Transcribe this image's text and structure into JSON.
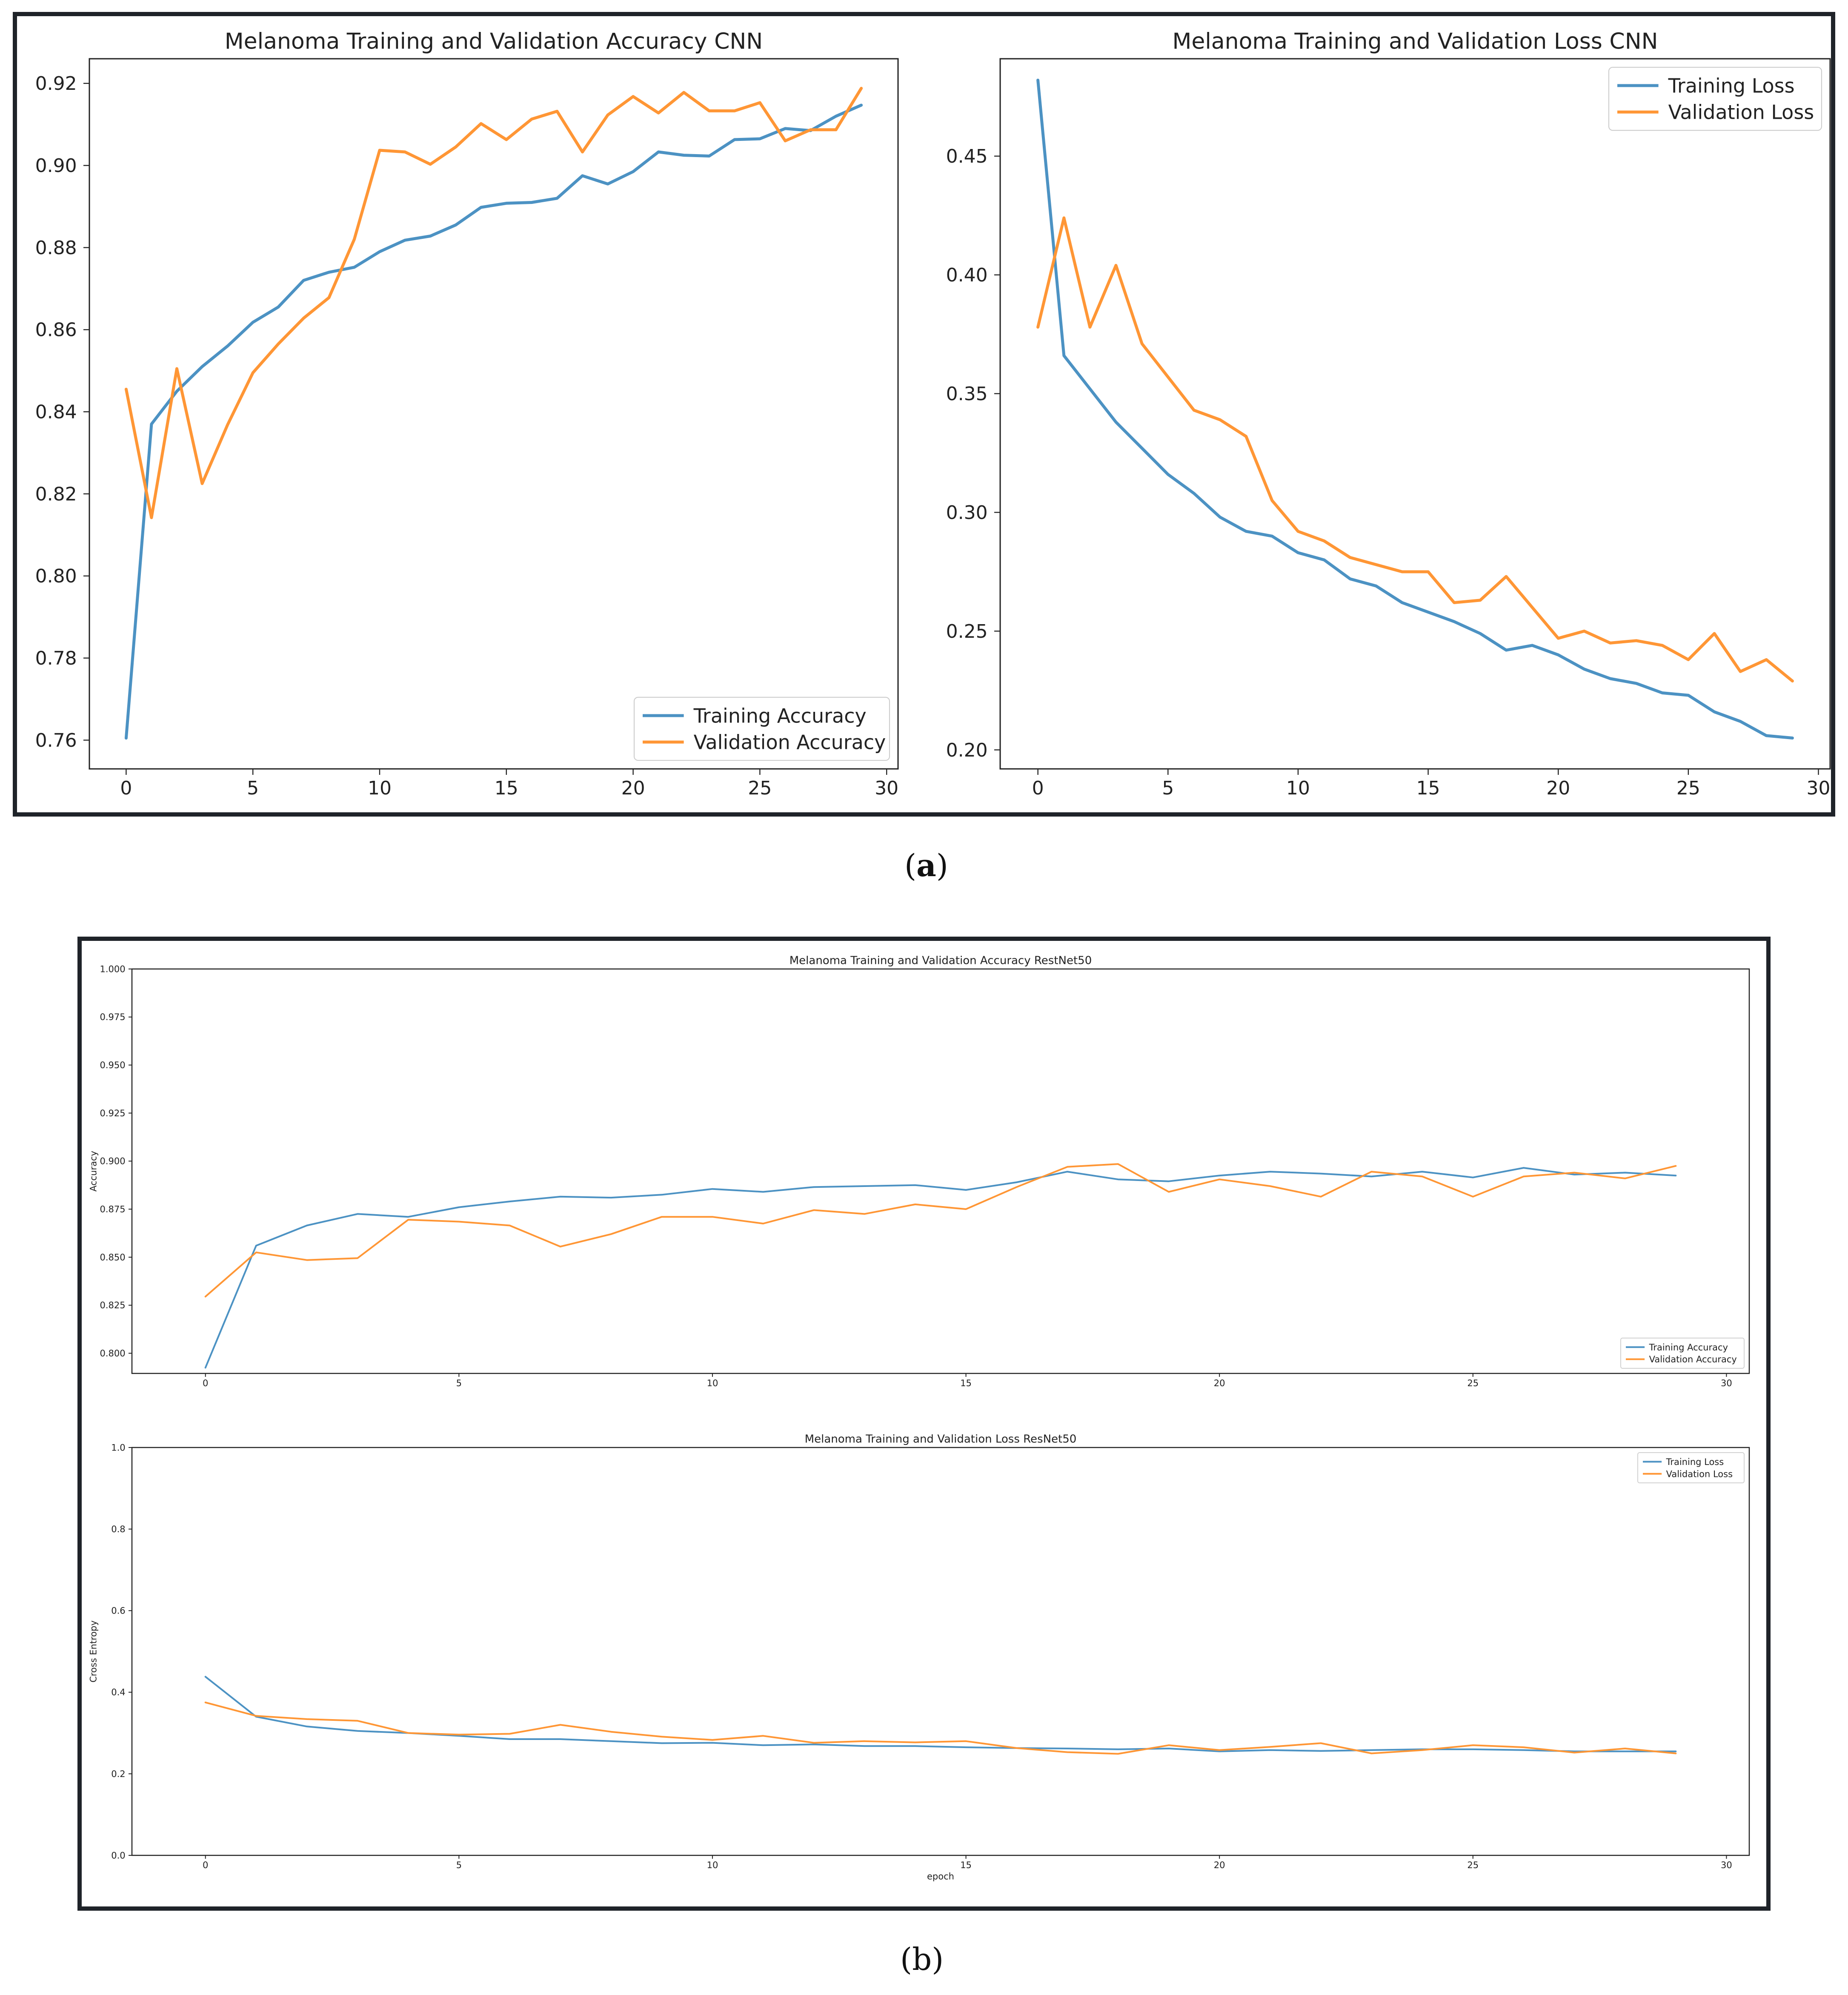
{
  "captions": {
    "a_open": "(",
    "a_letter": "a",
    "a_close": ")",
    "b": "(b)"
  },
  "colors": {
    "training": "#4c92c3",
    "validation": "#ff9635",
    "axis": "#222222",
    "frame": "#1f2329"
  },
  "chart_data": [
    {
      "id": "cnn-accuracy",
      "type": "line",
      "title": "Melanoma Training and Validation Accuracy CNN",
      "xlabel": "",
      "ylabel": "",
      "xlim": [
        -1.45,
        30.45
      ],
      "ylim": [
        0.753,
        0.926
      ],
      "xticks": [
        0,
        5,
        10,
        15,
        20,
        25,
        30
      ],
      "yticks": [
        0.76,
        0.78,
        0.8,
        0.82,
        0.84,
        0.86,
        0.88,
        0.9,
        0.92
      ],
      "ytick_decimals": 2,
      "legend": "lower-right",
      "series": [
        {
          "name": "Training Accuracy",
          "color": "#4c92c3",
          "x": [
            0,
            1,
            2,
            3,
            4,
            5,
            6,
            7,
            8,
            9,
            10,
            11,
            12,
            13,
            14,
            15,
            16,
            17,
            18,
            19,
            20,
            21,
            22,
            23,
            24,
            25,
            26,
            27,
            28,
            29
          ],
          "values": [
            0.7605,
            0.837,
            0.845,
            0.851,
            0.856,
            0.8618,
            0.8655,
            0.872,
            0.874,
            0.8752,
            0.879,
            0.8818,
            0.8828,
            0.8855,
            0.8898,
            0.8908,
            0.891,
            0.892,
            0.8975,
            0.8955,
            0.8985,
            0.9033,
            0.9025,
            0.9023,
            0.9063,
            0.9065,
            0.909,
            0.9085,
            0.912,
            0.9147
          ]
        },
        {
          "name": "Validation Accuracy",
          "color": "#ff9635",
          "x": [
            0,
            1,
            2,
            3,
            4,
            5,
            6,
            7,
            8,
            9,
            10,
            11,
            12,
            13,
            14,
            15,
            16,
            17,
            18,
            19,
            20,
            21,
            22,
            23,
            24,
            25,
            26,
            27,
            28,
            29
          ],
          "values": [
            0.8455,
            0.8142,
            0.8505,
            0.8225,
            0.8368,
            0.8495,
            0.8565,
            0.8628,
            0.8678,
            0.882,
            0.9037,
            0.9033,
            0.9003,
            0.9045,
            0.9102,
            0.9063,
            0.9113,
            0.9132,
            0.9033,
            0.9123,
            0.9168,
            0.9128,
            0.9178,
            0.9133,
            0.9133,
            0.9153,
            0.906,
            0.9087,
            0.9087,
            0.9188
          ]
        }
      ]
    },
    {
      "id": "cnn-loss",
      "type": "line",
      "title": "Melanoma Training and Validation Loss CNN",
      "xlabel": "",
      "ylabel": "",
      "xlim": [
        -1.45,
        30.45
      ],
      "ylim": [
        0.192,
        0.491
      ],
      "xticks": [
        0,
        5,
        10,
        15,
        20,
        25,
        30
      ],
      "yticks": [
        0.2,
        0.25,
        0.3,
        0.35,
        0.4,
        0.45
      ],
      "ytick_decimals": 2,
      "legend": "top-right",
      "series": [
        {
          "name": "Training Loss",
          "color": "#4c92c3",
          "x": [
            0,
            1,
            2,
            3,
            4,
            5,
            6,
            7,
            8,
            9,
            10,
            11,
            12,
            13,
            14,
            15,
            16,
            17,
            18,
            19,
            20,
            21,
            22,
            23,
            24,
            25,
            26,
            27,
            28,
            29
          ],
          "values": [
            0.482,
            0.366,
            0.352,
            0.338,
            0.327,
            0.316,
            0.308,
            0.298,
            0.292,
            0.29,
            0.283,
            0.28,
            0.272,
            0.269,
            0.262,
            0.258,
            0.254,
            0.249,
            0.242,
            0.244,
            0.24,
            0.234,
            0.23,
            0.228,
            0.224,
            0.223,
            0.216,
            0.212,
            0.206,
            0.205
          ]
        },
        {
          "name": "Validation Loss",
          "color": "#ff9635",
          "x": [
            0,
            1,
            2,
            3,
            4,
            5,
            6,
            7,
            8,
            9,
            10,
            11,
            12,
            13,
            14,
            15,
            16,
            17,
            18,
            19,
            20,
            21,
            22,
            23,
            24,
            25,
            26,
            27,
            28,
            29
          ],
          "values": [
            0.378,
            0.424,
            0.378,
            0.404,
            0.371,
            0.357,
            0.343,
            0.339,
            0.332,
            0.305,
            0.292,
            0.288,
            0.281,
            0.278,
            0.275,
            0.275,
            0.262,
            0.263,
            0.273,
            0.26,
            0.247,
            0.25,
            0.245,
            0.246,
            0.244,
            0.238,
            0.249,
            0.233,
            0.238,
            0.229
          ]
        }
      ]
    },
    {
      "id": "resnet-accuracy",
      "type": "line",
      "title": "Melanoma Training and Validation Accuracy RestNet50",
      "xlabel": "",
      "ylabel": "Accuracy",
      "xlim": [
        -1.45,
        30.45
      ],
      "ylim": [
        0.7895,
        1.0
      ],
      "xticks": [
        0,
        5,
        10,
        15,
        20,
        25,
        30
      ],
      "yticks": [
        0.8,
        0.825,
        0.85,
        0.875,
        0.9,
        0.925,
        0.95,
        0.975,
        1.0
      ],
      "ytick_decimals": 3,
      "legend": "lower-right",
      "series": [
        {
          "name": "Training Accuracy",
          "color": "#4c92c3",
          "x": [
            0,
            1,
            2,
            3,
            4,
            5,
            6,
            7,
            8,
            9,
            10,
            11,
            12,
            13,
            14,
            15,
            16,
            17,
            18,
            19,
            20,
            21,
            22,
            23,
            24,
            25,
            26,
            27,
            28,
            29
          ],
          "values": [
            0.7925,
            0.856,
            0.8665,
            0.8725,
            0.871,
            0.876,
            0.879,
            0.8815,
            0.881,
            0.8825,
            0.8855,
            0.884,
            0.8865,
            0.887,
            0.8875,
            0.885,
            0.889,
            0.8945,
            0.8905,
            0.8895,
            0.8925,
            0.8945,
            0.8935,
            0.892,
            0.8945,
            0.8915,
            0.8965,
            0.893,
            0.894,
            0.8925
          ]
        },
        {
          "name": "Validation Accuracy",
          "color": "#ff9635",
          "x": [
            0,
            1,
            2,
            3,
            4,
            5,
            6,
            7,
            8,
            9,
            10,
            11,
            12,
            13,
            14,
            15,
            16,
            17,
            18,
            19,
            20,
            21,
            22,
            23,
            24,
            25,
            26,
            27,
            28,
            29
          ],
          "values": [
            0.8295,
            0.8525,
            0.8485,
            0.8495,
            0.8695,
            0.8685,
            0.8665,
            0.8555,
            0.862,
            0.871,
            0.871,
            0.8675,
            0.8745,
            0.8725,
            0.8775,
            0.875,
            0.8865,
            0.897,
            0.8985,
            0.884,
            0.8905,
            0.887,
            0.8815,
            0.8945,
            0.892,
            0.8815,
            0.892,
            0.894,
            0.891,
            0.8975
          ]
        }
      ]
    },
    {
      "id": "resnet-loss",
      "type": "line",
      "title": "Melanoma Training and Validation Loss ResNet50",
      "xlabel": "epoch",
      "ylabel": "Cross Entropy",
      "xlim": [
        -1.45,
        30.45
      ],
      "ylim": [
        0.0,
        1.0
      ],
      "xticks": [
        0,
        5,
        10,
        15,
        20,
        25,
        30
      ],
      "yticks": [
        0.0,
        0.2,
        0.4,
        0.6,
        0.8,
        1.0
      ],
      "ytick_decimals": 1,
      "legend": "top-right",
      "series": [
        {
          "name": "Training Loss",
          "color": "#4c92c3",
          "x": [
            0,
            1,
            2,
            3,
            4,
            5,
            6,
            7,
            8,
            9,
            10,
            11,
            12,
            13,
            14,
            15,
            16,
            17,
            18,
            19,
            20,
            21,
            22,
            23,
            24,
            25,
            26,
            27,
            28,
            29
          ],
          "values": [
            0.438,
            0.34,
            0.316,
            0.305,
            0.3,
            0.293,
            0.285,
            0.285,
            0.28,
            0.275,
            0.276,
            0.27,
            0.272,
            0.268,
            0.268,
            0.265,
            0.263,
            0.262,
            0.26,
            0.262,
            0.255,
            0.258,
            0.256,
            0.258,
            0.26,
            0.26,
            0.258,
            0.255,
            0.255,
            0.255
          ]
        },
        {
          "name": "Validation Loss",
          "color": "#ff9635",
          "x": [
            0,
            1,
            2,
            3,
            4,
            5,
            6,
            7,
            8,
            9,
            10,
            11,
            12,
            13,
            14,
            15,
            16,
            17,
            18,
            19,
            20,
            21,
            22,
            23,
            24,
            25,
            26,
            27,
            28,
            29
          ],
          "values": [
            0.375,
            0.342,
            0.334,
            0.33,
            0.3,
            0.296,
            0.298,
            0.32,
            0.303,
            0.291,
            0.283,
            0.293,
            0.276,
            0.28,
            0.277,
            0.28,
            0.263,
            0.253,
            0.249,
            0.27,
            0.258,
            0.266,
            0.275,
            0.25,
            0.258,
            0.27,
            0.265,
            0.252,
            0.262,
            0.25
          ]
        }
      ]
    }
  ]
}
